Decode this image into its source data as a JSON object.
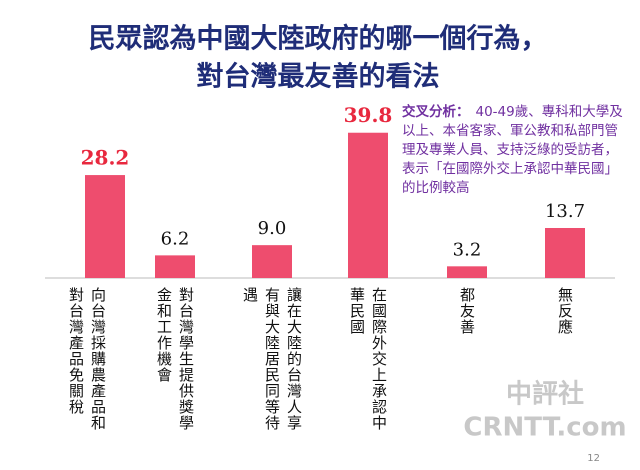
{
  "chart_data": {
    "type": "bar",
    "title": [
      "民眾認為中國大陸政府的哪一個行為，",
      "對台灣最友善的看法"
    ],
    "categories": [
      "向台灣採購農產品和對台灣產品免關稅",
      "對台灣學生提供獎學金和工作機會",
      "讓在大陸的台灣人享有與大陸居民同等待遇",
      "在國際外交上承認中華民國",
      "都友善",
      "無反應"
    ],
    "values": [
      28.2,
      6.2,
      9.0,
      39.8,
      3.2,
      13.7
    ],
    "value_labels": [
      "28.2",
      "6.2",
      "9.0",
      "39.8",
      "3.2",
      "13.7"
    ],
    "color": "#ee4d6e",
    "ylim": [
      0,
      40
    ],
    "annotation": {
      "label": "交叉分析：",
      "text": "40-49歲、專科和大學及以上、本省客家、軍公教和私部門管理及專業人員、支持泛綠的受訪者，表示「在國際外交上承認中華民國」的比例較高"
    },
    "watermark": [
      "中評社",
      "CRNTT.com"
    ],
    "page_number": "12"
  }
}
